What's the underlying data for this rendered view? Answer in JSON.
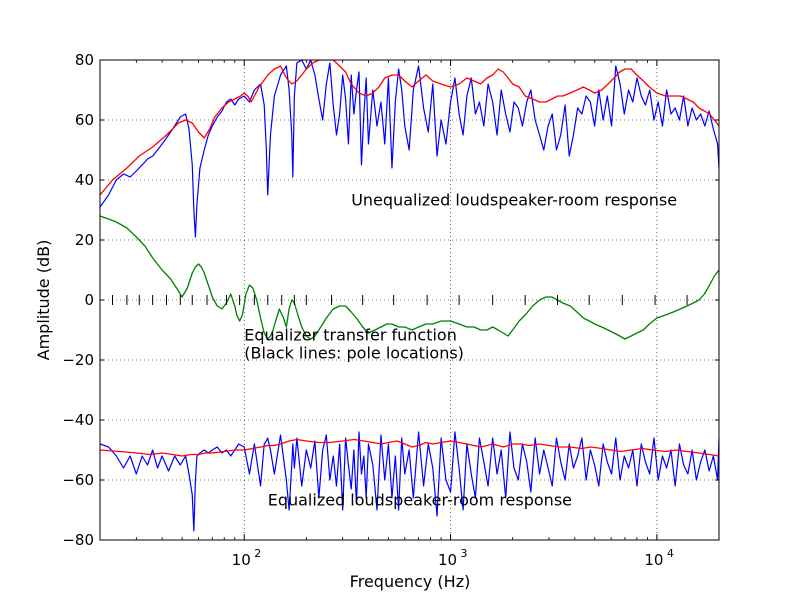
{
  "chart_data": {
    "type": "line",
    "xlabel": "Frequency (Hz)",
    "ylabel": "Amplitude (dB)",
    "xscale": "log",
    "xlim": [
      20,
      20000
    ],
    "ylim": [
      -80,
      80
    ],
    "yticks": [
      -80,
      -60,
      -40,
      -20,
      0,
      20,
      40,
      60,
      80
    ],
    "ytick_labels": [
      "−80",
      "−60",
      "−40",
      "−20",
      "0",
      "20",
      "40",
      "60",
      "80"
    ],
    "xticks": [
      100,
      1000,
      10000
    ],
    "xtick_labels": [
      {
        "base": "10",
        "exp": "2"
      },
      {
        "base": "10",
        "exp": "3"
      },
      {
        "base": "10",
        "exp": "4"
      }
    ],
    "grid": true,
    "colors": {
      "raw": "#0000ff",
      "smoothed": "#ff0000",
      "equalizer": "#008000",
      "poles": "#000000",
      "ylabel": "#0000ff"
    },
    "annotations": [
      {
        "text": "Unequalized loudspeaker-room response",
        "x": 330,
        "y": 31.5
      },
      {
        "text": "Equalizer transfer function",
        "x": 100,
        "y": -13.5
      },
      {
        "text": "(Black lines: pole locations)",
        "x": 100,
        "y": -19.5
      },
      {
        "text": "Equalized loudspeaker-room response",
        "x": 130,
        "y": -68.5
      }
    ],
    "pole_locations": [
      23,
      27,
      31,
      36,
      42,
      49,
      56,
      66,
      82,
      95,
      112,
      130,
      152,
      175,
      200,
      265,
      375,
      530,
      770,
      1100,
      1600,
      2300,
      3300,
      4700,
      6800,
      9800,
      14000
    ],
    "series": [
      {
        "role": "raw",
        "x": [
          20,
          22,
          24,
          26,
          28,
          30,
          32,
          34,
          36,
          38,
          40,
          43,
          46,
          49,
          52,
          54,
          56,
          57,
          58,
          59,
          61,
          64,
          67,
          70,
          74,
          78,
          82,
          86,
          90,
          94,
          100,
          106,
          112,
          120,
          125,
          128,
          130,
          134,
          140,
          150,
          160,
          165,
          170,
          172,
          175,
          180,
          190,
          200,
          210,
          220,
          230,
          240,
          250,
          260,
          270,
          280,
          290,
          300,
          310,
          320,
          330,
          340,
          350,
          360,
          370,
          380,
          390,
          400,
          420,
          440,
          460,
          480,
          500,
          520,
          540,
          560,
          580,
          600,
          630,
          660,
          700,
          740,
          780,
          820,
          860,
          900,
          950,
          1000,
          1050,
          1100,
          1150,
          1200,
          1260,
          1320,
          1380,
          1450,
          1520,
          1600,
          1680,
          1760,
          1850,
          1940,
          2030,
          2130,
          2230,
          2340,
          2450,
          2570,
          2700,
          2830,
          2970,
          3110,
          3260,
          3420,
          3590,
          3760,
          3940,
          4130,
          4330,
          4540,
          4760,
          4990,
          5230,
          5490,
          5750,
          6030,
          6320,
          6630,
          6950,
          7290,
          7640,
          8010,
          8400,
          8800,
          9230,
          9680,
          10150,
          10640,
          11150,
          11700,
          12260,
          12860,
          13480,
          14130,
          14820,
          15540,
          16290,
          17080,
          17910,
          18780,
          19690,
          20000
        ],
        "y": [
          31,
          35,
          40,
          42,
          41,
          43,
          45,
          47,
          48,
          50,
          52,
          55,
          58,
          61,
          62,
          57,
          45,
          30,
          21,
          32,
          44,
          50,
          55,
          58,
          61,
          63,
          66,
          67,
          65,
          67,
          68,
          66,
          70,
          72,
          65,
          50,
          35,
          55,
          68,
          75,
          78,
          70,
          55,
          41,
          68,
          79,
          80,
          77,
          80,
          75,
          67,
          60,
          72,
          79,
          65,
          55,
          62,
          75,
          67,
          52,
          75,
          62,
          70,
          76,
          45,
          62,
          74,
          52,
          70,
          58,
          66,
          52,
          74,
          44,
          66,
          77,
          70,
          58,
          50,
          70,
          78,
          64,
          56,
          72,
          48,
          60,
          52,
          66,
          74,
          62,
          55,
          68,
          74,
          62,
          66,
          58,
          72,
          66,
          55,
          70,
          62,
          56,
          66,
          64,
          58,
          66,
          70,
          60,
          55,
          50,
          58,
          62,
          50,
          55,
          65,
          48,
          55,
          64,
          62,
          68,
          66,
          58,
          70,
          60,
          68,
          58,
          78,
          72,
          62,
          70,
          66,
          74,
          68,
          65,
          70,
          60,
          66,
          58,
          70,
          62,
          64,
          60,
          68,
          58,
          64,
          60,
          62,
          58,
          63,
          57,
          52,
          44
        ]
      },
      {
        "role": "smoothed",
        "x": [
          20,
          23,
          27,
          31,
          36,
          42,
          48,
          52,
          56,
          60,
          64,
          68,
          72,
          78,
          84,
          90,
          96,
          100,
          104,
          108,
          112,
          118,
          124,
          130,
          140,
          150,
          160,
          170,
          180,
          190,
          200,
          215,
          230,
          250,
          270,
          290,
          310,
          330,
          360,
          390,
          420,
          450,
          480,
          520,
          560,
          600,
          650,
          700,
          760,
          820,
          900,
          1000,
          1100,
          1200,
          1300,
          1400,
          1500,
          1600,
          1700,
          1800,
          1900,
          2000,
          2150,
          2300,
          2500,
          2700,
          2900,
          3100,
          3300,
          3500,
          3800,
          4100,
          4400,
          4700,
          5000,
          5400,
          5800,
          6200,
          6600,
          7000,
          7500,
          8000,
          8600,
          9200,
          10000,
          11000,
          12000,
          13000,
          14000,
          15000,
          16000,
          17000,
          18000,
          19000,
          20000
        ],
        "y": [
          35,
          40,
          44,
          48,
          51,
          55,
          59,
          60,
          59,
          56,
          54,
          57,
          61,
          64,
          66,
          67,
          68,
          69,
          68,
          66,
          68,
          71,
          73,
          75,
          77,
          78,
          74,
          72,
          73,
          75,
          77,
          79,
          80,
          80,
          80,
          78,
          76,
          72,
          69,
          68,
          69,
          71,
          74,
          75,
          75,
          73,
          71,
          73,
          75,
          73,
          72,
          71,
          72,
          74,
          73,
          72,
          74,
          75,
          77,
          76,
          74,
          72,
          71,
          68,
          67,
          66,
          66,
          67,
          68,
          68,
          69,
          70,
          71,
          70,
          69,
          70,
          72,
          74,
          76,
          77,
          77,
          75,
          73,
          71,
          69,
          68,
          68,
          68,
          67,
          66,
          64,
          63,
          62,
          60,
          58
        ]
      },
      {
        "role": "equalizer",
        "x": [
          20,
          22,
          24,
          27,
          30,
          33,
          36,
          40,
          44,
          48,
          50,
          53,
          56,
          58,
          60,
          62,
          64,
          67,
          70,
          74,
          78,
          82,
          86,
          90,
          92,
          95,
          98,
          102,
          106,
          110,
          115,
          120,
          125,
          130,
          134,
          138,
          142,
          148,
          155,
          160,
          165,
          170,
          175,
          182,
          190,
          200,
          210,
          220,
          235,
          250,
          270,
          290,
          310,
          330,
          350,
          375,
          400,
          430,
          460,
          490,
          520,
          560,
          600,
          650,
          700,
          760,
          820,
          900,
          1000,
          1100,
          1200,
          1300,
          1400,
          1500,
          1600,
          1700,
          1800,
          1900,
          2000,
          2150,
          2300,
          2500,
          2700,
          2900,
          3100,
          3300,
          3500,
          3800,
          4100,
          4400,
          4700,
          5000,
          5400,
          5800,
          6200,
          6600,
          7000,
          7500,
          8000,
          8600,
          9200,
          10000,
          11000,
          12000,
          13000,
          14000,
          15000,
          16000,
          17000,
          18000,
          19000,
          20000
        ],
        "y": [
          28,
          27,
          26,
          24,
          21,
          18,
          14,
          10,
          7,
          3,
          1,
          4,
          9,
          11,
          12,
          11,
          9,
          5,
          1,
          -2,
          -3,
          -1,
          2,
          -2,
          -5,
          -7,
          -5,
          2,
          5,
          4,
          0,
          -6,
          -11,
          -13,
          -12,
          -10,
          -7,
          -3,
          -6,
          -9,
          -3,
          0,
          -1,
          -5,
          -9,
          -12,
          -13,
          -12,
          -9,
          -6,
          -3,
          -2,
          -2,
          -4,
          -6,
          -9,
          -11,
          -10,
          -9,
          -8,
          -8,
          -9,
          -9,
          -10,
          -9,
          -8,
          -8,
          -7,
          -7,
          -8,
          -9,
          -9,
          -10,
          -10,
          -9,
          -10,
          -11,
          -12,
          -10,
          -7,
          -5,
          -2,
          0,
          1,
          1,
          0,
          -1,
          -2,
          -4,
          -6,
          -7,
          -8,
          -9,
          -10,
          -11,
          -12,
          -13,
          -12,
          -11,
          -10,
          -8,
          -6,
          -5,
          -4,
          -3,
          -2,
          -1,
          0,
          2,
          5,
          8,
          10
        ]
      },
      {
        "role": "raw",
        "x": [
          20,
          22,
          24,
          26,
          28,
          30,
          32,
          34,
          36,
          38,
          40,
          43,
          46,
          49,
          52,
          54,
          56,
          57,
          58,
          59,
          61,
          64,
          67,
          70,
          74,
          78,
          82,
          86,
          90,
          94,
          100,
          106,
          112,
          120,
          125,
          128,
          130,
          134,
          140,
          150,
          160,
          165,
          170,
          172,
          175,
          180,
          190,
          200,
          210,
          220,
          230,
          240,
          250,
          260,
          270,
          280,
          290,
          300,
          310,
          320,
          330,
          340,
          350,
          360,
          370,
          380,
          390,
          400,
          420,
          440,
          460,
          480,
          500,
          520,
          540,
          560,
          580,
          600,
          630,
          660,
          700,
          740,
          780,
          820,
          860,
          900,
          950,
          1000,
          1050,
          1100,
          1150,
          1200,
          1260,
          1320,
          1380,
          1450,
          1520,
          1600,
          1680,
          1760,
          1850,
          1940,
          2030,
          2130,
          2230,
          2340,
          2450,
          2570,
          2700,
          2830,
          2970,
          3110,
          3260,
          3420,
          3590,
          3760,
          3940,
          4130,
          4330,
          4540,
          4760,
          4990,
          5230,
          5490,
          5750,
          6030,
          6320,
          6630,
          6950,
          7290,
          7640,
          8010,
          8400,
          8800,
          9230,
          9680,
          10150,
          10640,
          11150,
          11700,
          12260,
          12860,
          13480,
          14130,
          14820,
          15540,
          16290,
          17080,
          17910,
          18780,
          19690,
          20000
        ],
        "y": [
          -48,
          -49,
          -52,
          -56,
          -52,
          -58,
          -52,
          -55,
          -50,
          -56,
          -52,
          -57,
          -52,
          -55,
          -52,
          -58,
          -65,
          -77,
          -60,
          -52,
          -51,
          -50,
          -51,
          -50,
          -49,
          -51,
          -50,
          -52,
          -50,
          -48,
          -49,
          -58,
          -48,
          -62,
          -48,
          -47,
          -46,
          -50,
          -58,
          -45,
          -60,
          -70,
          -55,
          -48,
          -56,
          -46,
          -62,
          -50,
          -56,
          -47,
          -66,
          -50,
          -45,
          -60,
          -52,
          -62,
          -48,
          -70,
          -46,
          -55,
          -63,
          -50,
          -68,
          -44,
          -58,
          -52,
          -66,
          -48,
          -55,
          -70,
          -45,
          -60,
          -48,
          -66,
          -52,
          -70,
          -46,
          -58,
          -50,
          -66,
          -44,
          -62,
          -48,
          -56,
          -72,
          -46,
          -60,
          -64,
          -44,
          -56,
          -70,
          -48,
          -58,
          -66,
          -46,
          -54,
          -62,
          -46,
          -58,
          -50,
          -66,
          -44,
          -56,
          -60,
          -48,
          -54,
          -64,
          -46,
          -58,
          -50,
          -56,
          -62,
          -46,
          -54,
          -60,
          -48,
          -56,
          -52,
          -46,
          -60,
          -50,
          -55,
          -62,
          -48,
          -54,
          -58,
          -46,
          -60,
          -52,
          -56,
          -50,
          -62,
          -48,
          -54,
          -58,
          -46,
          -60,
          -52,
          -56,
          -50,
          -62,
          -48,
          -55,
          -58,
          -50,
          -60,
          -54,
          -50,
          -57,
          -52,
          -60,
          -46
        ]
      },
      {
        "role": "smoothed",
        "x": [
          20,
          25,
          30,
          35,
          40,
          45,
          50,
          55,
          60,
          65,
          70,
          80,
          90,
          100,
          110,
          120,
          130,
          140,
          150,
          165,
          180,
          200,
          230,
          260,
          300,
          340,
          380,
          420,
          460,
          500,
          550,
          600,
          650,
          700,
          760,
          820,
          900,
          1000,
          1100,
          1200,
          1300,
          1400,
          1500,
          1600,
          1700,
          1800,
          1900,
          2000,
          2200,
          2400,
          2700,
          3000,
          3400,
          3800,
          4300,
          4800,
          5400,
          6000,
          6700,
          7500,
          8500,
          9500,
          11000,
          12500,
          14000,
          16000,
          18000,
          20000
        ],
        "y": [
          -50,
          -50.5,
          -51,
          -51.5,
          -51,
          -51.5,
          -52,
          -51.5,
          -51.5,
          -51,
          -51,
          -50.5,
          -50,
          -50,
          -49.5,
          -49,
          -48.5,
          -48.5,
          -48,
          -47,
          -46.5,
          -47,
          -47.5,
          -47.5,
          -47,
          -46.5,
          -47,
          -47.5,
          -48,
          -47.5,
          -47,
          -48,
          -49,
          -48.5,
          -47.5,
          -48,
          -47.5,
          -47,
          -47.5,
          -48,
          -48.5,
          -49,
          -48.5,
          -48,
          -48.5,
          -49,
          -48.5,
          -48,
          -48,
          -48.5,
          -48,
          -48.5,
          -49,
          -49,
          -49.5,
          -49,
          -49.5,
          -50,
          -50.5,
          -50,
          -49.5,
          -50,
          -50.5,
          -50,
          -50.5,
          -51,
          -51.5,
          -52
        ]
      }
    ]
  }
}
